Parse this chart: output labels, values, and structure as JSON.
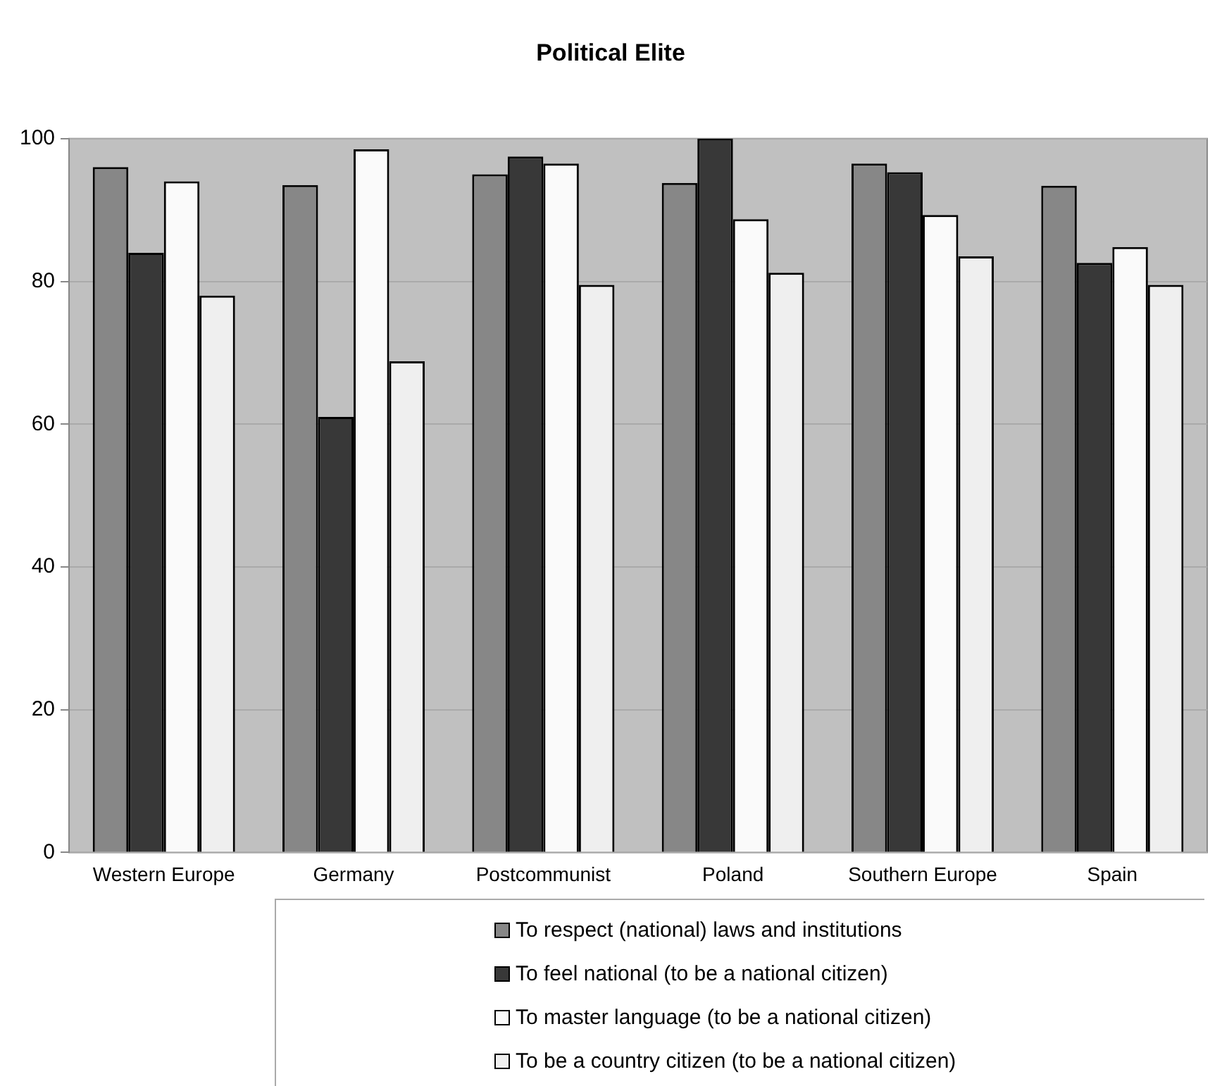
{
  "chart_data": {
    "type": "bar",
    "title": "Political Elite",
    "categories": [
      "Western Europe",
      "Germany",
      "Postcommunist",
      "Poland",
      "Southern Europe",
      "Spain"
    ],
    "series": [
      {
        "name": "To respect (national) laws and institutions",
        "color": "#878787",
        "values": [
          96,
          93.5,
          95,
          93.8,
          96.5,
          93.4
        ]
      },
      {
        "name": "To feel national (to be a national citizen)",
        "color": "#383838",
        "values": [
          84,
          61,
          97.5,
          100,
          95.3,
          82.6
        ]
      },
      {
        "name": "To master language (to be a national citizen)",
        "color": "#fafafa",
        "values": [
          94,
          98.5,
          96.5,
          88.7,
          89.3,
          84.8
        ]
      },
      {
        "name": "To be a country citizen (to be a national citizen)",
        "color": "#efefef",
        "values": [
          78,
          68.8,
          79.5,
          81.2,
          83.5,
          79.5
        ]
      }
    ],
    "ylim": [
      0,
      100
    ],
    "yticks": [
      0,
      20,
      40,
      60,
      80,
      100
    ],
    "grid": "y",
    "legend": "bottom"
  }
}
